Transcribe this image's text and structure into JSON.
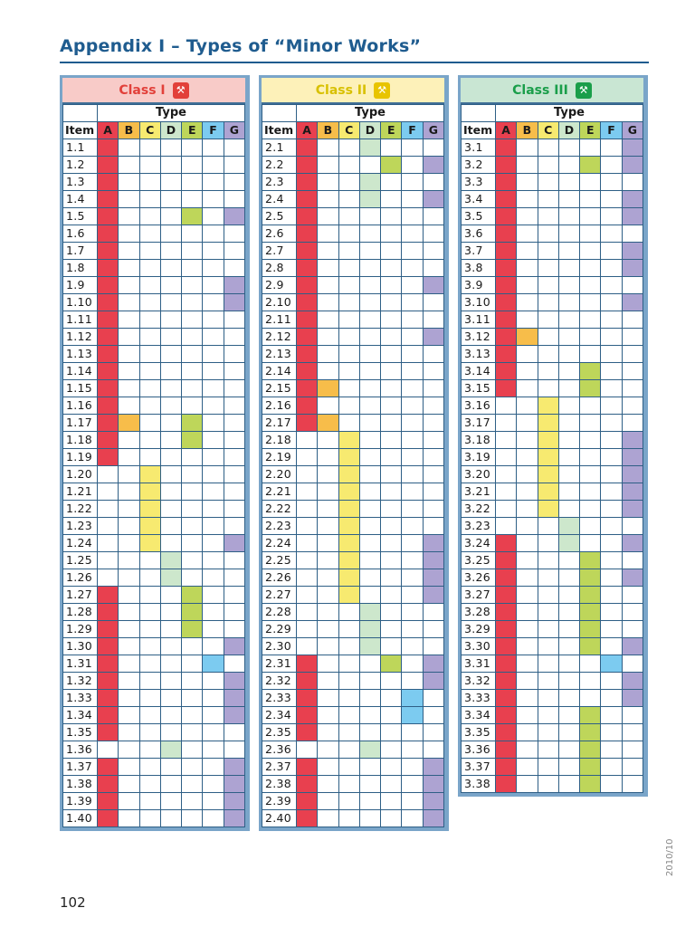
{
  "page": {
    "title": "Appendix I – Types of “Minor Works”",
    "page_number": "102",
    "year": "2010/10"
  },
  "headers": {
    "type": "Type",
    "item": "Item",
    "letters": [
      "A",
      "B",
      "C",
      "D",
      "E",
      "F",
      "G"
    ]
  },
  "colors": {
    "A": "#e8404f",
    "B": "#f7bd4a",
    "C": "#f7ea70",
    "D": "#cde7cc",
    "E": "#bed65a",
    "F": "#7ccbf0",
    "G": "#ada3d2",
    "class1_bg": "#f8cbc8",
    "class2_bg": "#fdf1b9",
    "class3_bg": "#c9e6d3",
    "class1_text": "#e2403a",
    "class2_text": "#d8c000",
    "class3_text": "#1a9e4a"
  },
  "classes": [
    {
      "label": "Class I",
      "icon": "class-1-icon",
      "items": [
        {
          "id": "1.1",
          "types": "A"
        },
        {
          "id": "1.2",
          "types": "A"
        },
        {
          "id": "1.3",
          "types": "A"
        },
        {
          "id": "1.4",
          "types": "A"
        },
        {
          "id": "1.5",
          "types": "AEG"
        },
        {
          "id": "1.6",
          "types": "A"
        },
        {
          "id": "1.7",
          "types": "A"
        },
        {
          "id": "1.8",
          "types": "A"
        },
        {
          "id": "1.9",
          "types": "AG"
        },
        {
          "id": "1.10",
          "types": "AG"
        },
        {
          "id": "1.11",
          "types": "A"
        },
        {
          "id": "1.12",
          "types": "A"
        },
        {
          "id": "1.13",
          "types": "A"
        },
        {
          "id": "1.14",
          "types": "A"
        },
        {
          "id": "1.15",
          "types": "A"
        },
        {
          "id": "1.16",
          "types": "A"
        },
        {
          "id": "1.17",
          "types": "ABE"
        },
        {
          "id": "1.18",
          "types": "AE"
        },
        {
          "id": "1.19",
          "types": "A"
        },
        {
          "id": "1.20",
          "types": "C"
        },
        {
          "id": "1.21",
          "types": "C"
        },
        {
          "id": "1.22",
          "types": "C"
        },
        {
          "id": "1.23",
          "types": "C"
        },
        {
          "id": "1.24",
          "types": "CG"
        },
        {
          "id": "1.25",
          "types": "D"
        },
        {
          "id": "1.26",
          "types": "D"
        },
        {
          "id": "1.27",
          "types": "AE"
        },
        {
          "id": "1.28",
          "types": "AE"
        },
        {
          "id": "1.29",
          "types": "AE"
        },
        {
          "id": "1.30",
          "types": "AG"
        },
        {
          "id": "1.31",
          "types": "AF"
        },
        {
          "id": "1.32",
          "types": "AG"
        },
        {
          "id": "1.33",
          "types": "AG"
        },
        {
          "id": "1.34",
          "types": "AG"
        },
        {
          "id": "1.35",
          "types": "A"
        },
        {
          "id": "1.36",
          "types": "D"
        },
        {
          "id": "1.37",
          "types": "AG"
        },
        {
          "id": "1.38",
          "types": "AG"
        },
        {
          "id": "1.39",
          "types": "AG"
        },
        {
          "id": "1.40",
          "types": "AG"
        }
      ]
    },
    {
      "label": "Class II",
      "icon": "class-2-icon",
      "items": [
        {
          "id": "2.1",
          "types": "AD"
        },
        {
          "id": "2.2",
          "types": "AEG"
        },
        {
          "id": "2.3",
          "types": "AD"
        },
        {
          "id": "2.4",
          "types": "ADG"
        },
        {
          "id": "2.5",
          "types": "A"
        },
        {
          "id": "2.6",
          "types": "A"
        },
        {
          "id": "2.7",
          "types": "A"
        },
        {
          "id": "2.8",
          "types": "A"
        },
        {
          "id": "2.9",
          "types": "AG"
        },
        {
          "id": "2.10",
          "types": "A"
        },
        {
          "id": "2.11",
          "types": "A"
        },
        {
          "id": "2.12",
          "types": "AG"
        },
        {
          "id": "2.13",
          "types": "A"
        },
        {
          "id": "2.14",
          "types": "A"
        },
        {
          "id": "2.15",
          "types": "AB"
        },
        {
          "id": "2.16",
          "types": "A"
        },
        {
          "id": "2.17",
          "types": "AB"
        },
        {
          "id": "2.18",
          "types": "C"
        },
        {
          "id": "2.19",
          "types": "C"
        },
        {
          "id": "2.20",
          "types": "C"
        },
        {
          "id": "2.21",
          "types": "C"
        },
        {
          "id": "2.22",
          "types": "C"
        },
        {
          "id": "2.23",
          "types": "C"
        },
        {
          "id": "2.24",
          "types": "CG"
        },
        {
          "id": "2.25",
          "types": "CG"
        },
        {
          "id": "2.26",
          "types": "CG"
        },
        {
          "id": "2.27",
          "types": "CG"
        },
        {
          "id": "2.28",
          "types": "D"
        },
        {
          "id": "2.29",
          "types": "D"
        },
        {
          "id": "2.30",
          "types": "D"
        },
        {
          "id": "2.31",
          "types": "AEG"
        },
        {
          "id": "2.32",
          "types": "AG"
        },
        {
          "id": "2.33",
          "types": "AF"
        },
        {
          "id": "2.34",
          "types": "AF"
        },
        {
          "id": "2.35",
          "types": "A"
        },
        {
          "id": "2.36",
          "types": "D"
        },
        {
          "id": "2.37",
          "types": "AG"
        },
        {
          "id": "2.38",
          "types": "AG"
        },
        {
          "id": "2.39",
          "types": "AG"
        },
        {
          "id": "2.40",
          "types": "AG"
        }
      ]
    },
    {
      "label": "Class III",
      "icon": "class-3-icon",
      "items": [
        {
          "id": "3.1",
          "types": "AG"
        },
        {
          "id": "3.2",
          "types": "AEG"
        },
        {
          "id": "3.3",
          "types": "A"
        },
        {
          "id": "3.4",
          "types": "AG"
        },
        {
          "id": "3.5",
          "types": "AG"
        },
        {
          "id": "3.6",
          "types": "A"
        },
        {
          "id": "3.7",
          "types": "AG"
        },
        {
          "id": "3.8",
          "types": "AG"
        },
        {
          "id": "3.9",
          "types": "A"
        },
        {
          "id": "3.10",
          "types": "AG"
        },
        {
          "id": "3.11",
          "types": "A"
        },
        {
          "id": "3.12",
          "types": "AB"
        },
        {
          "id": "3.13",
          "types": "A"
        },
        {
          "id": "3.14",
          "types": "AE"
        },
        {
          "id": "3.15",
          "types": "AE"
        },
        {
          "id": "3.16",
          "types": "C"
        },
        {
          "id": "3.17",
          "types": "C"
        },
        {
          "id": "3.18",
          "types": "CG"
        },
        {
          "id": "3.19",
          "types": "CG"
        },
        {
          "id": "3.20",
          "types": "CG"
        },
        {
          "id": "3.21",
          "types": "CG"
        },
        {
          "id": "3.22",
          "types": "CG"
        },
        {
          "id": "3.23",
          "types": "D"
        },
        {
          "id": "3.24",
          "types": "ADG"
        },
        {
          "id": "3.25",
          "types": "AE"
        },
        {
          "id": "3.26",
          "types": "AEG"
        },
        {
          "id": "3.27",
          "types": "AE"
        },
        {
          "id": "3.28",
          "types": "AE"
        },
        {
          "id": "3.29",
          "types": "AE"
        },
        {
          "id": "3.30",
          "types": "AEG"
        },
        {
          "id": "3.31",
          "types": "AF"
        },
        {
          "id": "3.32",
          "types": "AG"
        },
        {
          "id": "3.33",
          "types": "AG"
        },
        {
          "id": "3.34",
          "types": "AE"
        },
        {
          "id": "3.35",
          "types": "AE"
        },
        {
          "id": "3.36",
          "types": "AE"
        },
        {
          "id": "3.37",
          "types": "AE"
        },
        {
          "id": "3.38",
          "types": "AE"
        }
      ]
    }
  ]
}
